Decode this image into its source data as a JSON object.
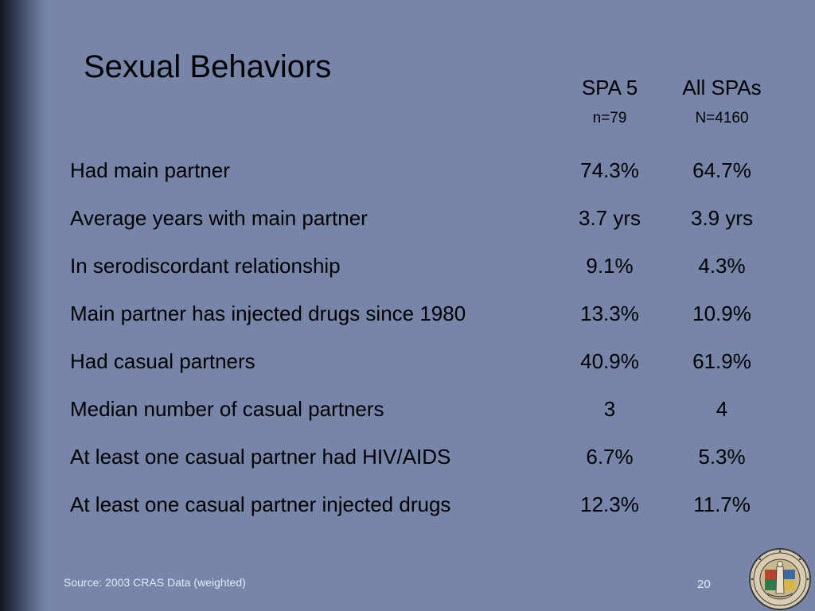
{
  "slide": {
    "title": "Sexual Behaviors",
    "columns": [
      {
        "name": "SPA 5",
        "n": "n=79"
      },
      {
        "name": "All SPAs",
        "n": "N=4160"
      }
    ],
    "rows": [
      {
        "label": "Had main partner",
        "spa5": "74.3%",
        "all": "64.7%"
      },
      {
        "label": "Average years with main partner",
        "spa5": "3.7 yrs",
        "all": "3.9 yrs"
      },
      {
        "label": "In serodiscordant relationship",
        "spa5": "9.1%",
        "all": "4.3%"
      },
      {
        "label": "Main partner has injected drugs since 1980",
        "spa5": "13.3%",
        "all": "10.9%"
      },
      {
        "label": "Had casual partners",
        "spa5": "40.9%",
        "all": "61.9%"
      },
      {
        "label": "Median number of casual partners",
        "spa5": "3",
        "all": "4"
      },
      {
        "label": "At least one casual partner had HIV/AIDS",
        "spa5": "6.7%",
        "all": "5.3%"
      },
      {
        "label": "At least one casual partner injected drugs",
        "spa5": "12.3%",
        "all": "11.7%"
      }
    ],
    "source": "Source: 2003 CRAS Data (weighted)",
    "page_number": "20",
    "seal_text": "COUNTY OF LOS ANGELES CALIFORNIA"
  },
  "colors": {
    "background": "#7786a8",
    "text": "#000000",
    "footer_text": "#e4e9f6"
  }
}
